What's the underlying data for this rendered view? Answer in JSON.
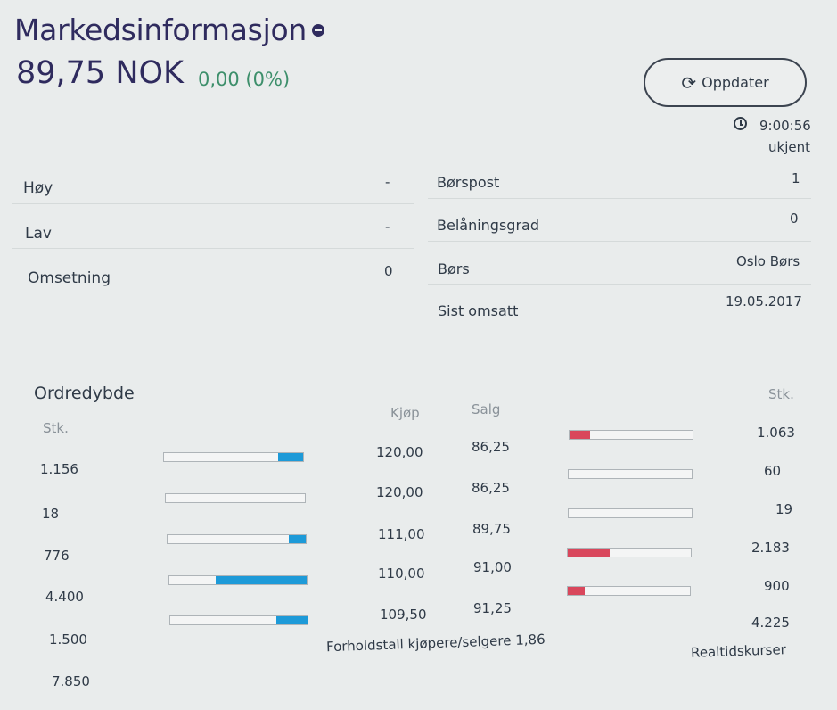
{
  "header": {
    "title": "Markedsinformasjon",
    "price": "89,75 NOK",
    "change": "0,00 (0%)"
  },
  "toolbar": {
    "refresh_label": "Oppdater",
    "refresh_icon": "refresh-hand-icon",
    "clock_icon": "clock-icon",
    "time": "9:00:56",
    "status": "ukjent"
  },
  "stats_left": [
    {
      "label": "Høy",
      "value": "-"
    },
    {
      "label": "Lav",
      "value": "-"
    },
    {
      "label": "Omsetning",
      "value": "0"
    }
  ],
  "stats_right": [
    {
      "label": "Børspost",
      "value": "1"
    },
    {
      "label": "Belåningsgrad",
      "value": "0"
    },
    {
      "label": "Børs",
      "value": "Oslo Børs"
    },
    {
      "label": "Sist omsatt",
      "value": "19.05.2017"
    }
  ],
  "orderbook": {
    "title": "Ordredybde",
    "stk_left_header": "Stk.",
    "buy_header": "Kjøp",
    "sell_header": "Salg",
    "stk_right_header": "Stk.",
    "rows": [
      {
        "buy_qty": "1.156",
        "buy_fill": 0.18,
        "buy_price": "120,00",
        "sell_price": "86,25",
        "sell_fill": 0.17,
        "sell_qty": "1.063"
      },
      {
        "buy_qty": "18",
        "buy_fill": 0.0,
        "buy_price": "120,00",
        "sell_price": "86,25",
        "sell_fill": 0.0,
        "sell_qty": "60"
      },
      {
        "buy_qty": "776",
        "buy_fill": 0.12,
        "buy_price": "111,00",
        "sell_price": "89,75",
        "sell_fill": 0.0,
        "sell_qty": "19"
      },
      {
        "buy_qty": "4.400",
        "buy_fill": 0.66,
        "buy_price": "110,00",
        "sell_price": "91,00",
        "sell_fill": 0.34,
        "sell_qty": "2.183"
      },
      {
        "buy_qty": "1.500",
        "buy_fill": 0.23,
        "buy_price": "109,50",
        "sell_price": "91,25",
        "sell_fill": 0.14,
        "sell_qty": "900"
      }
    ],
    "buy_total": "7.850",
    "sell_total": "4.225",
    "ratio_text": "Forholdstall kjøpere/selgere 1,86",
    "realtime_label": "Realtidskurser"
  }
}
